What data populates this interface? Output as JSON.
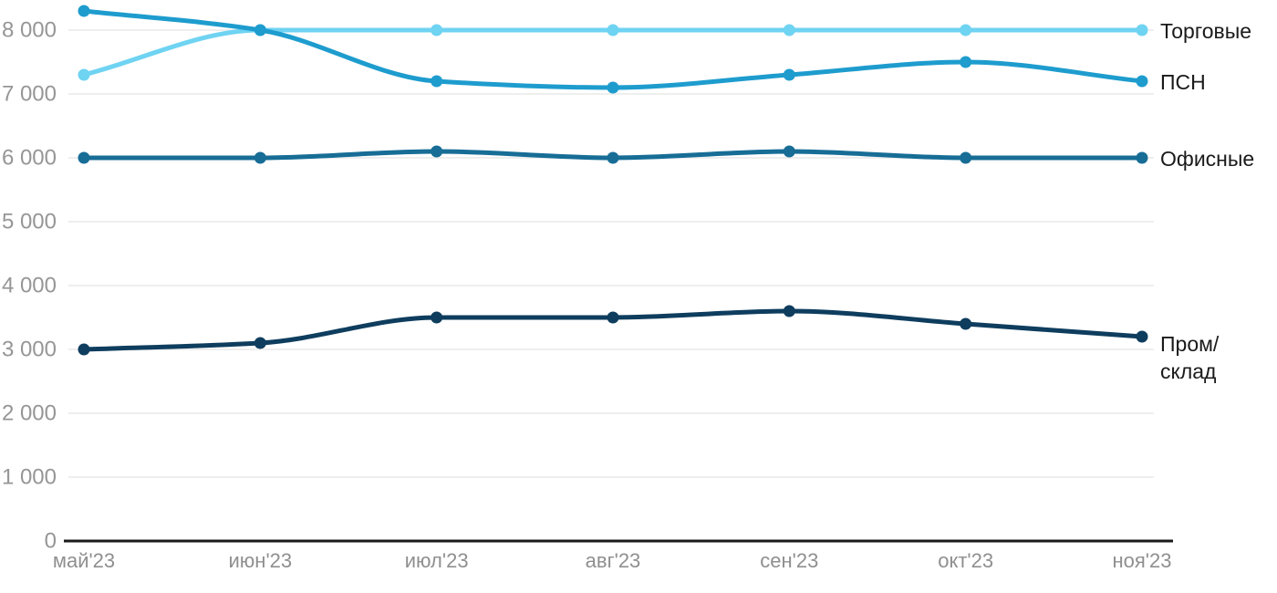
{
  "chart_data": {
    "type": "line",
    "title": "",
    "xlabel": "",
    "ylabel": "",
    "categories": [
      "май'23",
      "июн'23",
      "июл'23",
      "авг'23",
      "сен'23",
      "окт'23",
      "ноя'23"
    ],
    "series": [
      {
        "name": "Торговые",
        "label_lines": [
          "Торговые"
        ],
        "color": "#6FD3F2",
        "values": [
          7300,
          8000,
          8000,
          8000,
          8000,
          8000,
          8000
        ]
      },
      {
        "name": "ПСН",
        "label_lines": [
          "ПСН"
        ],
        "color": "#1E9CCE",
        "values": [
          8300,
          8000,
          7200,
          7100,
          7300,
          7500,
          7200
        ]
      },
      {
        "name": "Офисные",
        "label_lines": [
          "Офисные"
        ],
        "color": "#176D96",
        "values": [
          6000,
          6000,
          6100,
          6000,
          6100,
          6000,
          6000
        ]
      },
      {
        "name": "Пром/склад",
        "label_lines": [
          "Пром/",
          "склад"
        ],
        "color": "#0E3D5E",
        "values": [
          3000,
          3100,
          3500,
          3500,
          3600,
          3400,
          3200
        ]
      }
    ],
    "y_ticks": [
      0,
      1000,
      2000,
      3000,
      4000,
      5000,
      6000,
      7000,
      8000
    ],
    "y_tick_labels": [
      "0",
      "1 000",
      "2 000",
      "3 000",
      "4 000",
      "5 000",
      "6 000",
      "7 000",
      "8 000"
    ],
    "ylim": [
      0,
      8300
    ],
    "grid": "horizontal",
    "legend_position": "right-of-line-ends",
    "colors": {
      "background": "#FFFFFF",
      "grid": "#E9E9E9",
      "axis": "#1A1A1A",
      "tick_text": "#969696",
      "legend_text": "#1A1A1A"
    }
  }
}
